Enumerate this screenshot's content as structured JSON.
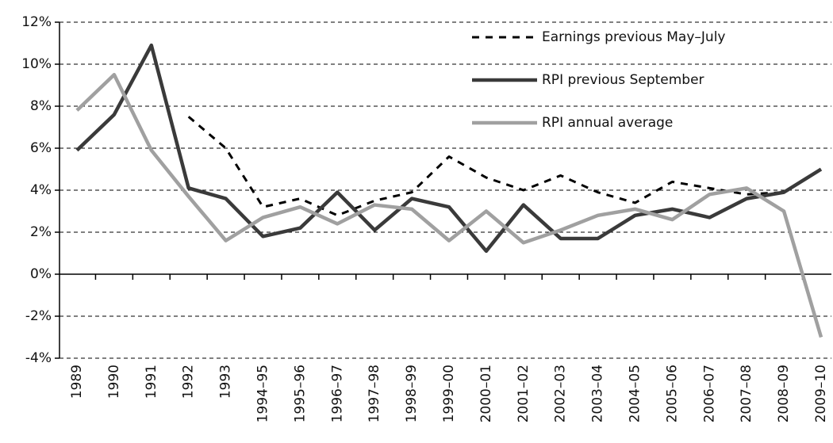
{
  "chart_data": {
    "type": "line",
    "categories": [
      "1989",
      "1990",
      "1991",
      "1992",
      "1993",
      "1994–95",
      "1995–96",
      "1996–97",
      "1997–98",
      "1998–99",
      "1999–00",
      "2000–01",
      "2001–02",
      "2002–03",
      "2003–04",
      "2004–05",
      "2005–06",
      "2006–07",
      "2007–08",
      "2008–09",
      "2009–10"
    ],
    "series": [
      {
        "name": "Earnings previous May–July",
        "color": "#000000",
        "dashed": true,
        "values": [
          null,
          null,
          null,
          7.5,
          6.0,
          3.2,
          3.6,
          2.8,
          3.5,
          3.9,
          5.6,
          4.6,
          4.0,
          4.7,
          3.9,
          3.4,
          4.4,
          4.1,
          3.8,
          3.9,
          null
        ]
      },
      {
        "name": "RPI previous September",
        "color": "#3a3a3a",
        "dashed": false,
        "values": [
          5.9,
          7.6,
          10.9,
          4.1,
          3.6,
          1.8,
          2.2,
          3.9,
          2.1,
          3.6,
          3.2,
          1.1,
          3.3,
          1.7,
          1.7,
          2.8,
          3.1,
          2.7,
          3.6,
          3.9,
          5.0
        ]
      },
      {
        "name": "RPI annual average",
        "color": "#a0a0a0",
        "dashed": false,
        "values": [
          7.8,
          9.5,
          5.9,
          3.7,
          1.6,
          2.7,
          3.2,
          2.4,
          3.3,
          3.1,
          1.6,
          3.0,
          1.5,
          2.1,
          2.8,
          3.1,
          2.6,
          3.8,
          4.1,
          3.0,
          -3.0
        ]
      }
    ],
    "ylim": [
      -4,
      12
    ],
    "yticks": [
      {
        "value": -4,
        "label": "-4%"
      },
      {
        "value": -2,
        "label": "-2%"
      },
      {
        "value": 0,
        "label": "0%"
      },
      {
        "value": 2,
        "label": "2%"
      },
      {
        "value": 4,
        "label": "4%"
      },
      {
        "value": 6,
        "label": "6%"
      },
      {
        "value": 8,
        "label": "8%"
      },
      {
        "value": 10,
        "label": "10%"
      },
      {
        "value": 12,
        "label": "12%"
      }
    ],
    "grid": true,
    "legend": "top-right"
  }
}
